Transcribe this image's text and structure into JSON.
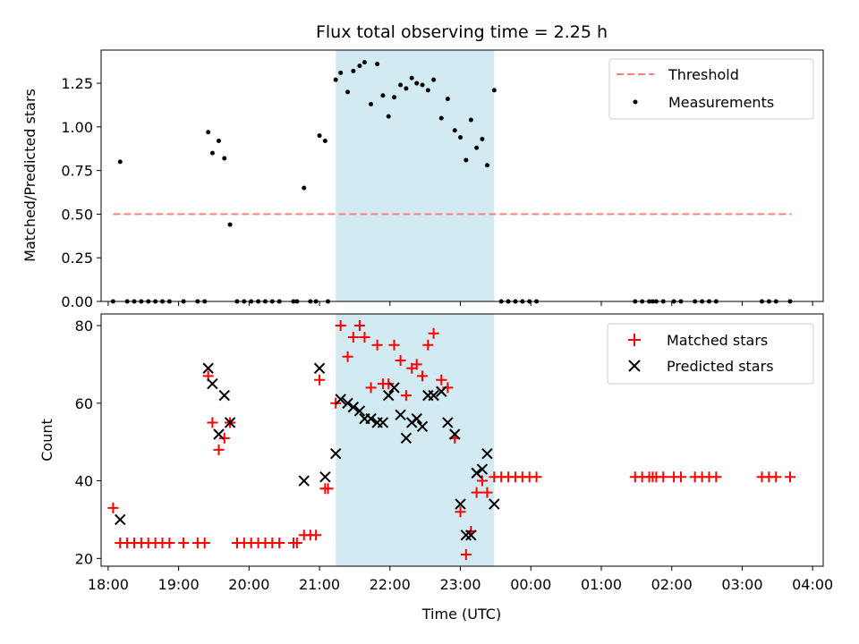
{
  "chart_data": [
    {
      "type": "scatter",
      "title": "Flux total observing time = 2.25 h",
      "xlabel": "",
      "ylabel": "Matched/Predicted stars",
      "xlim": [
        -0.1,
        10.15
      ],
      "ylim": [
        0,
        1.44
      ],
      "x_tick_values": [
        0,
        1,
        2,
        3,
        4,
        5,
        6,
        7,
        8,
        9,
        10
      ],
      "y_tick_values": [
        0,
        0.25,
        0.5,
        0.75,
        1.0,
        1.25
      ],
      "y_tick_labels": [
        "0.00",
        "0.25",
        "0.50",
        "0.75",
        "1.00",
        "1.25"
      ],
      "highlight_band": [
        3.23,
        5.48
      ],
      "threshold": {
        "name": "Threshold",
        "value": 0.5,
        "x_start": 0.07,
        "x_end": 9.7,
        "color": "#ff7f7f"
      },
      "series": [
        {
          "name": "Measurements",
          "color": "#000000",
          "marker": "dot",
          "points": [
            [
              0.07,
              0.0
            ],
            [
              0.17,
              0.8
            ],
            [
              0.27,
              0.0
            ],
            [
              0.37,
              0.0
            ],
            [
              0.47,
              0.0
            ],
            [
              0.57,
              0.0
            ],
            [
              0.67,
              0.0
            ],
            [
              0.77,
              0.0
            ],
            [
              0.87,
              0.0
            ],
            [
              1.07,
              0.0
            ],
            [
              1.27,
              0.0
            ],
            [
              1.37,
              0.0
            ],
            [
              1.42,
              0.97
            ],
            [
              1.48,
              0.85
            ],
            [
              1.57,
              0.92
            ],
            [
              1.65,
              0.82
            ],
            [
              1.73,
              0.44
            ],
            [
              1.83,
              0.0
            ],
            [
              1.93,
              0.0
            ],
            [
              2.03,
              0.0
            ],
            [
              2.13,
              0.0
            ],
            [
              2.23,
              0.0
            ],
            [
              2.33,
              0.0
            ],
            [
              2.43,
              0.0
            ],
            [
              2.63,
              0.0
            ],
            [
              2.68,
              0.0
            ],
            [
              2.78,
              0.65
            ],
            [
              2.87,
              0.0
            ],
            [
              2.95,
              0.0
            ],
            [
              3.0,
              0.95
            ],
            [
              3.08,
              0.92
            ],
            [
              3.12,
              0.0
            ],
            [
              3.23,
              1.27
            ],
            [
              3.3,
              1.31
            ],
            [
              3.4,
              1.2
            ],
            [
              3.48,
              1.32
            ],
            [
              3.57,
              1.35
            ],
            [
              3.64,
              1.37
            ],
            [
              3.73,
              1.13
            ],
            [
              3.82,
              1.36
            ],
            [
              3.9,
              1.18
            ],
            [
              3.98,
              1.06
            ],
            [
              4.06,
              1.17
            ],
            [
              4.15,
              1.24
            ],
            [
              4.23,
              1.22
            ],
            [
              4.31,
              1.28
            ],
            [
              4.38,
              1.25
            ],
            [
              4.46,
              1.24
            ],
            [
              4.54,
              1.21
            ],
            [
              4.62,
              1.27
            ],
            [
              4.73,
              1.05
            ],
            [
              4.82,
              1.16
            ],
            [
              4.92,
              0.98
            ],
            [
              5.0,
              0.94
            ],
            [
              5.08,
              0.81
            ],
            [
              5.15,
              1.04
            ],
            [
              5.23,
              0.88
            ],
            [
              5.31,
              0.93
            ],
            [
              5.38,
              0.78
            ],
            [
              5.48,
              1.21
            ],
            [
              5.58,
              0.0
            ],
            [
              5.68,
              0.0
            ],
            [
              5.78,
              0.0
            ],
            [
              5.88,
              0.0
            ],
            [
              5.98,
              0.0
            ],
            [
              6.08,
              0.0
            ],
            [
              7.48,
              0.0
            ],
            [
              7.58,
              0.0
            ],
            [
              7.68,
              0.0
            ],
            [
              7.73,
              0.0
            ],
            [
              7.78,
              0.0
            ],
            [
              7.88,
              0.0
            ],
            [
              8.03,
              0.0
            ],
            [
              8.13,
              0.0
            ],
            [
              8.33,
              0.0
            ],
            [
              8.43,
              0.0
            ],
            [
              8.53,
              0.0
            ],
            [
              8.63,
              0.0
            ],
            [
              9.28,
              0.0
            ],
            [
              9.38,
              0.0
            ],
            [
              9.48,
              0.0
            ],
            [
              9.68,
              0.0
            ]
          ]
        }
      ],
      "legend": {
        "position": "top-right",
        "entries": [
          "Threshold",
          "Measurements"
        ]
      }
    },
    {
      "type": "scatter",
      "title": "",
      "xlabel": "Time (UTC)",
      "ylabel": "Count",
      "xlim": [
        -0.1,
        10.15
      ],
      "ylim": [
        18,
        83
      ],
      "x_tick_values": [
        0,
        1,
        2,
        3,
        4,
        5,
        6,
        7,
        8,
        9,
        10
      ],
      "x_tick_labels": [
        "18:00",
        "19:00",
        "20:00",
        "21:00",
        "22:00",
        "23:00",
        "00:00",
        "01:00",
        "02:00",
        "03:00",
        "04:00"
      ],
      "y_tick_values": [
        20,
        40,
        60,
        80
      ],
      "y_tick_labels": [
        "20",
        "40",
        "60",
        "80"
      ],
      "highlight_band": [
        3.23,
        5.48
      ],
      "series": [
        {
          "name": "Matched stars",
          "color": "#ff0000",
          "marker": "plus",
          "points": [
            [
              0.07,
              33
            ],
            [
              0.17,
              24
            ],
            [
              0.27,
              24
            ],
            [
              0.37,
              24
            ],
            [
              0.47,
              24
            ],
            [
              0.57,
              24
            ],
            [
              0.67,
              24
            ],
            [
              0.77,
              24
            ],
            [
              0.87,
              24
            ],
            [
              1.07,
              24
            ],
            [
              1.27,
              24
            ],
            [
              1.37,
              24
            ],
            [
              1.42,
              67
            ],
            [
              1.48,
              55
            ],
            [
              1.57,
              48
            ],
            [
              1.65,
              51
            ],
            [
              1.73,
              55
            ],
            [
              1.83,
              24
            ],
            [
              1.93,
              24
            ],
            [
              2.03,
              24
            ],
            [
              2.13,
              24
            ],
            [
              2.23,
              24
            ],
            [
              2.33,
              24
            ],
            [
              2.43,
              24
            ],
            [
              2.63,
              24
            ],
            [
              2.68,
              24
            ],
            [
              2.78,
              26
            ],
            [
              2.87,
              26
            ],
            [
              2.95,
              26
            ],
            [
              3.0,
              66
            ],
            [
              3.08,
              38
            ],
            [
              3.12,
              38
            ],
            [
              3.23,
              60
            ],
            [
              3.3,
              80
            ],
            [
              3.4,
              72
            ],
            [
              3.48,
              77
            ],
            [
              3.57,
              80
            ],
            [
              3.64,
              77
            ],
            [
              3.73,
              64
            ],
            [
              3.82,
              75
            ],
            [
              3.9,
              65
            ],
            [
              3.98,
              65
            ],
            [
              4.06,
              75
            ],
            [
              4.15,
              71
            ],
            [
              4.23,
              62
            ],
            [
              4.31,
              69
            ],
            [
              4.38,
              70
            ],
            [
              4.46,
              67
            ],
            [
              4.54,
              75
            ],
            [
              4.62,
              78
            ],
            [
              4.73,
              66
            ],
            [
              4.82,
              64
            ],
            [
              4.92,
              51
            ],
            [
              5.0,
              32
            ],
            [
              5.08,
              21
            ],
            [
              5.15,
              27
            ],
            [
              5.23,
              37
            ],
            [
              5.31,
              40
            ],
            [
              5.38,
              37
            ],
            [
              5.48,
              41
            ],
            [
              5.58,
              41
            ],
            [
              5.68,
              41
            ],
            [
              5.78,
              41
            ],
            [
              5.88,
              41
            ],
            [
              5.98,
              41
            ],
            [
              6.08,
              41
            ],
            [
              7.48,
              41
            ],
            [
              7.58,
              41
            ],
            [
              7.68,
              41
            ],
            [
              7.73,
              41
            ],
            [
              7.78,
              41
            ],
            [
              7.88,
              41
            ],
            [
              8.03,
              41
            ],
            [
              8.13,
              41
            ],
            [
              8.33,
              41
            ],
            [
              8.43,
              41
            ],
            [
              8.53,
              41
            ],
            [
              8.63,
              41
            ],
            [
              9.28,
              41
            ],
            [
              9.38,
              41
            ],
            [
              9.48,
              41
            ],
            [
              9.68,
              41
            ]
          ]
        },
        {
          "name": "Predicted stars",
          "color": "#000000",
          "marker": "x",
          "points": [
            [
              0.17,
              30
            ],
            [
              1.42,
              69
            ],
            [
              1.48,
              65
            ],
            [
              1.57,
              52
            ],
            [
              1.65,
              62
            ],
            [
              1.73,
              55
            ],
            [
              2.78,
              40
            ],
            [
              3.0,
              69
            ],
            [
              3.08,
              41
            ],
            [
              3.23,
              47
            ],
            [
              3.3,
              61
            ],
            [
              3.4,
              60
            ],
            [
              3.48,
              59
            ],
            [
              3.57,
              58
            ],
            [
              3.64,
              56
            ],
            [
              3.73,
              56
            ],
            [
              3.82,
              55
            ],
            [
              3.9,
              55
            ],
            [
              3.98,
              62
            ],
            [
              4.06,
              64
            ],
            [
              4.15,
              57
            ],
            [
              4.23,
              51
            ],
            [
              4.31,
              55
            ],
            [
              4.38,
              56
            ],
            [
              4.46,
              54
            ],
            [
              4.54,
              62
            ],
            [
              4.62,
              62
            ],
            [
              4.73,
              63
            ],
            [
              4.82,
              55
            ],
            [
              4.92,
              52
            ],
            [
              5.0,
              34
            ],
            [
              5.08,
              26
            ],
            [
              5.15,
              26
            ],
            [
              5.23,
              42
            ],
            [
              5.31,
              43
            ],
            [
              5.38,
              47
            ],
            [
              5.48,
              34
            ]
          ]
        }
      ],
      "legend": {
        "position": "top-right",
        "entries": [
          "Matched stars",
          "Predicted stars"
        ]
      }
    }
  ]
}
